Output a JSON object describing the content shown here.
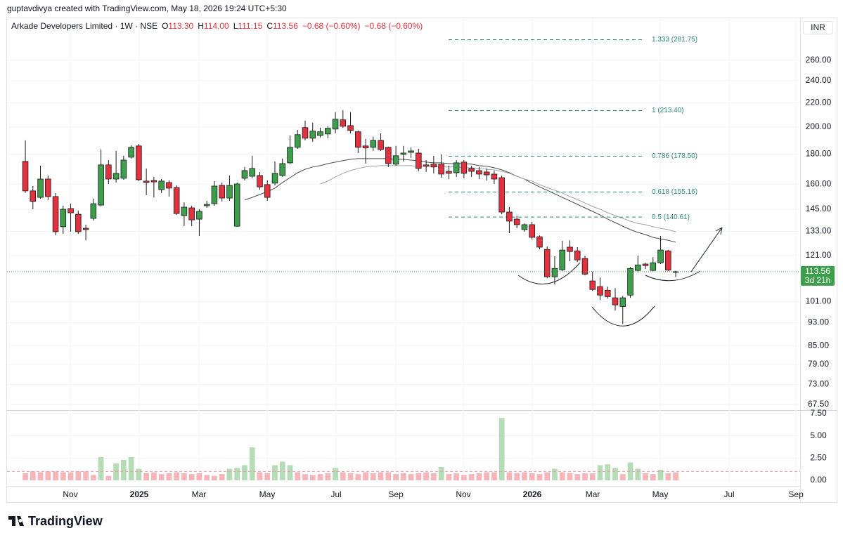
{
  "header": {
    "credit": "guptavdivya created with TradingView.com, May 18, 2026 19:24 UTC+5:30"
  },
  "chart_data": {
    "type": "candlestick",
    "legend": {
      "symbol": "Arkade Developers Limited · 1W · NSE",
      "items": [
        {
          "key": "O",
          "value": "113.30"
        },
        {
          "key": "H",
          "value": "114.00"
        },
        {
          "key": "L",
          "value": "111.15"
        },
        {
          "key": "C",
          "value": "113.56"
        }
      ],
      "changes": [
        "−0.68 (−0.60%)",
        "−0.68 (−0.60%)"
      ]
    },
    "currency": "INR",
    "log_scale": true,
    "grid": true,
    "up_color": "#3d9e4c",
    "down_color": "#e2323f",
    "wick_color": "#1a1a1a",
    "open": [
      174.9,
      155.8,
      151.9,
      163.2,
      152.4,
      135.4,
      145.4,
      142.2,
      134.6,
      139.9,
      147.4,
      172.5,
      163.2,
      163.7,
      177.8,
      185.8,
      161.9,
      162.3,
      156.6,
      161.0,
      157.9,
      141.4,
      145.8,
      139.5,
      147.0,
      148.2,
      159.2,
      151.5,
      135.7,
      163.7,
      165.0,
      165.5,
      159.7,
      160.6,
      165.5,
      173.9,
      184.8,
      199.6,
      191.5,
      193.6,
      194.7,
      198.5,
      205.8,
      201.2,
      196.4,
      185.8,
      184.8,
      189.9,
      184.8,
      173.0,
      179.8,
      181.2,
      180.7,
      172.5,
      173.0,
      173.0,
      168.2,
      167.3,
      174.4,
      170.1,
      168.7,
      167.8,
      166.4,
      164.1,
      143.4,
      139.5,
      133.9,
      136.5,
      130.2,
      123.9,
      111.3,
      114.4,
      125.0,
      123.2,
      119.6,
      109.5,
      107.1,
      105.6,
      102.5,
      99.1,
      103.6,
      114.1,
      117.0,
      114.1,
      117.6,
      123.2,
      113.3
    ],
    "high": [
      189.9,
      158.8,
      172.0,
      165.5,
      154.5,
      147.0,
      148.2,
      144.2,
      136.5,
      151.1,
      183.2,
      175.8,
      182.2,
      178.8,
      186.3,
      187.3,
      170.1,
      164.6,
      163.2,
      162.3,
      159.2,
      149.0,
      147.0,
      145.0,
      149.9,
      161.9,
      161.0,
      165.5,
      161.0,
      171.1,
      178.8,
      167.8,
      162.3,
      174.9,
      176.8,
      193.6,
      197.9,
      205.2,
      203.5,
      199.6,
      200.7,
      212.1,
      213.8,
      212.1,
      197.4,
      191.0,
      192.6,
      195.2,
      185.3,
      185.8,
      185.8,
      184.8,
      183.7,
      175.8,
      178.8,
      179.8,
      172.0,
      175.8,
      175.8,
      172.0,
      171.1,
      170.1,
      168.7,
      165.5,
      146.2,
      141.4,
      137.2,
      138.0,
      130.9,
      125.3,
      120.6,
      128.1,
      128.4,
      125.0,
      120.9,
      113.5,
      111.0,
      107.1,
      106.5,
      103.3,
      115.7,
      120.9,
      117.6,
      120.2,
      130.6,
      123.6,
      114.0
    ],
    "low": [
      154.5,
      145.0,
      151.1,
      150.3,
      130.9,
      131.7,
      132.8,
      131.7,
      128.4,
      138.7,
      146.6,
      160.1,
      161.0,
      162.8,
      176.8,
      161.9,
      153.2,
      151.9,
      154.5,
      152.4,
      141.8,
      135.7,
      135.7,
      130.6,
      145.8,
      147.0,
      149.5,
      149.9,
      135.4,
      162.3,
      163.7,
      156.6,
      149.9,
      159.2,
      164.6,
      173.0,
      183.7,
      189.9,
      188.9,
      192.1,
      191.5,
      195.2,
      199.6,
      195.2,
      180.7,
      173.4,
      182.2,
      182.2,
      171.1,
      172.0,
      174.9,
      177.3,
      168.2,
      167.8,
      166.9,
      164.1,
      163.2,
      164.6,
      163.7,
      164.6,
      163.2,
      162.3,
      160.1,
      142.2,
      132.0,
      134.6,
      132.8,
      128.8,
      123.9,
      110.7,
      108.0,
      113.8,
      118.3,
      117.9,
      111.9,
      105.3,
      101.6,
      102.2,
      97.5,
      92.5,
      102.5,
      113.2,
      114.7,
      113.8,
      117.0,
      113.9,
      111.15
    ],
    "close": [
      155.8,
      149.5,
      163.2,
      152.4,
      132.8,
      145.0,
      143.0,
      132.8,
      133.9,
      148.2,
      172.5,
      163.2,
      166.9,
      175.8,
      184.8,
      162.8,
      161.0,
      161.4,
      161.9,
      157.5,
      142.6,
      146.2,
      139.1,
      143.8,
      147.8,
      158.8,
      151.5,
      159.2,
      160.1,
      168.7,
      170.1,
      158.3,
      151.9,
      166.9,
      173.4,
      184.8,
      194.2,
      191.5,
      196.9,
      196.4,
      199.1,
      206.3,
      200.7,
      197.4,
      184.8,
      184.3,
      189.9,
      183.2,
      173.4,
      178.8,
      180.7,
      182.2,
      170.1,
      171.6,
      171.1,
      166.4,
      166.9,
      173.9,
      166.9,
      168.2,
      166.4,
      165.9,
      163.2,
      143.4,
      138.4,
      136.5,
      136.5,
      129.9,
      125.0,
      111.3,
      115.0,
      123.6,
      122.9,
      118.9,
      112.5,
      105.9,
      103.6,
      103.0,
      99.7,
      102.5,
      115.0,
      116.6,
      116.3,
      117.6,
      123.6,
      114.24,
      113.56
    ],
    "moving_averages": [
      {
        "color": "#4a4a4a",
        "values": [
          null,
          null,
          null,
          null,
          null,
          null,
          null,
          null,
          null,
          null,
          null,
          null,
          null,
          null,
          null,
          null,
          null,
          null,
          null,
          null,
          null,
          null,
          null,
          null,
          null,
          null,
          null,
          null,
          null,
          150.3,
          151.9,
          153.6,
          155.4,
          157.5,
          161.0,
          164.1,
          167.3,
          169.6,
          171.1,
          172.0,
          173.4,
          174.4,
          175.4,
          176.3,
          176.8,
          176.8,
          176.8,
          176.8,
          176.8,
          176.3,
          176.3,
          175.8,
          175.4,
          174.4,
          173.9,
          173.9,
          173.4,
          173.4,
          173.4,
          173.0,
          172.0,
          171.6,
          170.6,
          169.2,
          167.3,
          165.0,
          163.2,
          160.6,
          158.3,
          156.2,
          154.0,
          151.9,
          149.9,
          147.8,
          145.8,
          143.8,
          141.8,
          139.5,
          137.6,
          135.7,
          133.9,
          132.4,
          131.3,
          129.9,
          129.1,
          128.4,
          127.4
        ]
      },
      {
        "color": "#a3a3a3",
        "values": [
          null,
          null,
          null,
          null,
          null,
          null,
          null,
          null,
          null,
          null,
          null,
          null,
          null,
          null,
          null,
          null,
          null,
          null,
          null,
          null,
          null,
          null,
          null,
          null,
          null,
          null,
          null,
          null,
          null,
          null,
          null,
          null,
          null,
          null,
          null,
          null,
          null,
          null,
          null,
          160.1,
          161.9,
          164.6,
          166.9,
          168.7,
          170.1,
          171.1,
          171.6,
          172.0,
          172.0,
          172.0,
          172.0,
          172.0,
          171.6,
          171.6,
          171.6,
          171.1,
          171.1,
          171.1,
          170.6,
          170.6,
          170.1,
          169.6,
          169.2,
          168.2,
          166.9,
          165.0,
          163.2,
          161.9,
          159.7,
          157.9,
          156.2,
          154.5,
          152.4,
          150.7,
          148.6,
          146.6,
          145.0,
          143.0,
          141.4,
          139.9,
          138.4,
          137.2,
          136.5,
          135.4,
          134.6,
          133.9,
          132.8
        ]
      }
    ],
    "fib_levels": [
      {
        "value": 281.75,
        "label": "1.333 (281.75)"
      },
      {
        "value": 213.4,
        "label": "1 (213.40)"
      },
      {
        "value": 178.5,
        "label": "0.786 (178.50)"
      },
      {
        "value": 155.16,
        "label": "0.618 (155.16)"
      },
      {
        "value": 140.61,
        "label": "0.5 (140.61)"
      }
    ],
    "fib_color": "#2b8a72",
    "last_price": 113.56,
    "countdown": "3d 21h",
    "xlim": [
      -2.42,
      102.45
    ],
    "xticks": [
      {
        "value": 5.95,
        "label": "Nov"
      },
      {
        "value": 15.06,
        "label": "2025"
      },
      {
        "value": 22.96,
        "label": "Mar"
      },
      {
        "value": 31.98,
        "label": "May"
      },
      {
        "value": 41.09,
        "label": "Jul"
      },
      {
        "value": 49.0,
        "label": "Sep"
      },
      {
        "value": 57.92,
        "label": "Nov"
      },
      {
        "value": 67.03,
        "label": "2026"
      },
      {
        "value": 75.03,
        "label": "Mar"
      },
      {
        "value": 83.95,
        "label": "May"
      },
      {
        "value": 93.06,
        "label": "Jul"
      },
      {
        "value": 101.9,
        "label": "Sep"
      }
    ],
    "ylim": [
      66.4,
      303
    ],
    "yticks": [
      {
        "value": 260,
        "label": "260.00"
      },
      {
        "value": 240,
        "label": "240.00"
      },
      {
        "value": 220,
        "label": "220.00"
      },
      {
        "value": 200,
        "label": "200.00"
      },
      {
        "value": 180,
        "label": "180.00"
      },
      {
        "value": 160,
        "label": "160.00"
      },
      {
        "value": 145,
        "label": "145.00"
      },
      {
        "value": 133,
        "label": "133.00"
      },
      {
        "value": 121,
        "label": "121.00"
      },
      {
        "value": 101,
        "label": "101.00"
      },
      {
        "value": 93,
        "label": "93.00"
      },
      {
        "value": 85,
        "label": "85.00"
      },
      {
        "value": 79,
        "label": "79.00"
      },
      {
        "value": 73,
        "label": "73.00"
      },
      {
        "value": 67.5,
        "label": "67.50"
      }
    ],
    "volume": [
      0.8,
      1.0,
      0.9,
      1.0,
      1.0,
      0.9,
      0.9,
      1.0,
      1.0,
      0.6,
      2.6,
      0.5,
      1.9,
      2.3,
      2.6,
      1.3,
      0.8,
      0.9,
      0.7,
      0.8,
      0.9,
      0.8,
      0.7,
      0.8,
      0.6,
      0.5,
      0.7,
      1.3,
      1.4,
      1.7,
      3.7,
      0.9,
      0.8,
      1.7,
      2.1,
      1.7,
      0.9,
      0.7,
      0.6,
      0.7,
      0.8,
      1.4,
      0.9,
      0.8,
      0.7,
      0.9,
      0.8,
      0.9,
      0.9,
      0.7,
      0.8,
      0.7,
      0.8,
      0.9,
      0.8,
      1.5,
      0.7,
      0.8,
      0.6,
      0.7,
      0.8,
      0.9,
      0.9,
      7.0,
      0.9,
      0.8,
      0.9,
      0.8,
      0.7,
      0.9,
      1.3,
      0.9,
      0.8,
      0.7,
      0.8,
      0.8,
      1.7,
      1.8,
      1.4,
      0.7,
      2.0,
      1.3,
      0.8,
      0.7,
      1.2,
      0.8,
      0.9
    ],
    "volume_average": 1.0,
    "volume_up_color": "#b5dcb6",
    "volume_down_color": "#f5b5b9",
    "volume_lim": [
      -0.63,
      7.89
    ],
    "volume_ticks": [
      {
        "value": 7.5,
        "label": "7.50"
      },
      {
        "value": 5,
        "label": "5.00"
      },
      {
        "value": 2.5,
        "label": "2.50"
      },
      {
        "value": 0,
        "label": "0.00"
      }
    ]
  },
  "footer": {
    "brand": "TradingView"
  }
}
